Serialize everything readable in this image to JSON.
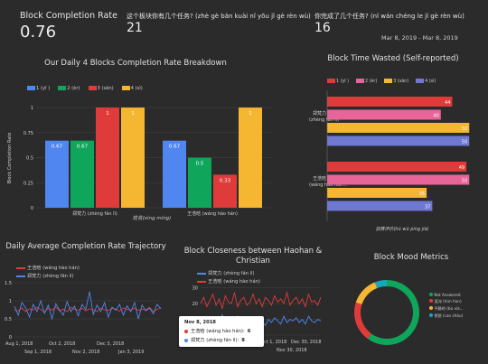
{
  "colors": {
    "blue": "#4f86ef",
    "green": "#0fa55b",
    "red": "#df3b3b",
    "yellow": "#f5b731",
    "pink": "#e8659a",
    "slate": "#6f79d2",
    "teal": "#17a7b9",
    "bg": "#2b2b2b"
  },
  "kpis": [
    {
      "label": "Block Completion Rate",
      "value": "0.76"
    },
    {
      "label": "这个板块你有几个任务? (zhè gè băn kuài nĭ yŏu jĭ gè rèn wù)",
      "value": "21"
    },
    {
      "label": "你完成了几个任务? (nĭ wán chéng le jĭ gè rèn wù)",
      "value": "16"
    }
  ],
  "date_range": "Mar 8, 2019 - Mar 8, 2019",
  "panel1": {
    "title": "Our Daily 4 Blocks Completion Rate Breakdown",
    "legend": [
      "1 (yī )",
      "2 (èr)",
      "3 (sān)",
      "4 (sì)"
    ],
    "ylabel": "Block Completion Rate",
    "xlabel": "姓名(xìng míng)",
    "yticks": [
      "1",
      "0.75",
      "0.5",
      "0.25",
      "0"
    ]
  },
  "panel2": {
    "title": "Block Time Wasted (Self-reported)",
    "legend": [
      "1 (yī )",
      "2 (èr)",
      "3 (sān)",
      "4 (sì)"
    ],
    "xlabel": "获赛评价(hù wù pìng jià)",
    "person1": [
      "郑梵力",
      "(zhèng fán lì)"
    ],
    "person2": [
      "王浩晗",
      "(wáng hào hán..."
    ]
  },
  "panel3": {
    "title": "Daily Average Completion Rate Trajectory",
    "legend": [
      "王浩晗 (wáng hào hán)",
      "郑梵力 (zhèng fán lì)"
    ],
    "yticks": [
      "1.5",
      "1",
      "0.5",
      "0"
    ],
    "xticks_top": [
      "Aug 1, 2018",
      "Oct 2, 2018",
      "Dec 3, 2018"
    ],
    "xticks_bot": [
      "Sep 1, 2018",
      "Nov 2, 2018",
      "Jan 3, 2019"
    ]
  },
  "panel4": {
    "title": "Block Closeness between Haohan & Christian",
    "legend": [
      "郑梵力 (zhèng fán lì)",
      "王浩晗 (wáng hào hán)"
    ],
    "yticks": [
      "30",
      "20",
      "10",
      "0"
    ],
    "xticks": [
      "Oct 1, 2018",
      "Dec 30, 2018"
    ],
    "xticks_bot": [
      "Nov 30, 2018"
    ],
    "tooltip": {
      "date": "Nov 8, 2018",
      "rows": [
        {
          "label": "王浩晗 (wáng hào hán):",
          "value": "6"
        },
        {
          "label": "郑梵力 (zhèng fán lì):",
          "value": "8"
        }
      ]
    }
  },
  "panel5": {
    "title": "Block Mood Metrics",
    "legend": [
      "Not Answered",
      "混沌 (hún hùn)",
      "平静的 (bù xià...",
      "愤怒 (can zhòu)"
    ]
  },
  "chart_data": [
    {
      "type": "bar",
      "title": "Our Daily 4 Blocks Completion Rate Breakdown",
      "xlabel": "姓名(xìng míng)",
      "ylabel": "Block Completion Rate",
      "categories": [
        "郑梵力 (zhèng fán lì)",
        "王浩晗 (wáng hào hán)"
      ],
      "ylim": [
        0,
        1.1
      ],
      "series": [
        {
          "name": "1 (yī )",
          "values": [
            0.67,
            0.67
          ],
          "labels": [
            "0.67",
            "0.67"
          ]
        },
        {
          "name": "2 (èr)",
          "values": [
            0.67,
            0.5
          ],
          "labels": [
            "0.67",
            "0.5"
          ]
        },
        {
          "name": "3 (sān)",
          "values": [
            1,
            0.33
          ],
          "labels": [
            "1",
            "0.33"
          ]
        },
        {
          "name": "4 (sì)",
          "values": [
            1,
            1
          ],
          "labels": [
            "1",
            "1"
          ]
        }
      ]
    },
    {
      "type": "bar",
      "orientation": "horizontal",
      "title": "Block Time Wasted (Self-reported)",
      "xlabel": "获赛评价(hù wù pìng jià)",
      "categories": [
        "郑梵力 (zhèng fán lì)",
        "王浩晗 (wáng hào hán)"
      ],
      "xlim": [
        0,
        55
      ],
      "series": [
        {
          "name": "1 (yī )",
          "values": [
            44,
            49
          ]
        },
        {
          "name": "2 (èr)",
          "values": [
            40,
            50
          ]
        },
        {
          "name": "3 (sān)",
          "values": [
            50,
            35
          ]
        },
        {
          "name": "4 (sì)",
          "values": [
            50,
            37
          ]
        }
      ]
    },
    {
      "type": "line",
      "title": "Daily Average Completion Rate Trajectory",
      "x_range": [
        "Aug 1, 2018",
        "Mar 8, 2019"
      ],
      "ylim": [
        0,
        1.5
      ],
      "series": [
        {
          "name": "王浩晗 (wáng hào hán)",
          "values": [
            0.75,
            0.72,
            0.8,
            0.7,
            0.78,
            0.74,
            0.82,
            0.76,
            0.68,
            0.8,
            0.74,
            0.83,
            0.72,
            0.77,
            0.7,
            0.82,
            0.76,
            0.74,
            0.8,
            0.72,
            0.78,
            0.75,
            0.7,
            0.8,
            0.75,
            0.73,
            0.79,
            0.77,
            0.71,
            0.8,
            0.76,
            0.74,
            0.8,
            0.73,
            0.77,
            0.75,
            0.82,
            0.7,
            0.76,
            0.8
          ]
        },
        {
          "name": "郑梵力 (zhèng fán lì)",
          "values": [
            0.85,
            0.6,
            0.95,
            0.8,
            0.55,
            0.9,
            0.7,
            1.0,
            0.65,
            0.88,
            0.5,
            0.92,
            0.75,
            0.6,
            0.98,
            0.7,
            0.85,
            0.58,
            0.9,
            0.76,
            1.25,
            0.62,
            0.88,
            0.7,
            0.95,
            0.55,
            0.82,
            0.74,
            0.9,
            0.6,
            0.86,
            0.7,
            0.95,
            0.5,
            0.88,
            0.72,
            0.8,
            0.64,
            0.9,
            0.78
          ]
        }
      ]
    },
    {
      "type": "line",
      "title": "Block Closeness between Haohan & Christian",
      "x_range": [
        "Oct 1, 2018",
        "Jan 1, 2019"
      ],
      "ylim": [
        0,
        35
      ],
      "series": [
        {
          "name": "郑梵力 (zhèng fán lì)",
          "values": [
            10,
            8,
            12,
            9,
            6,
            11,
            8,
            13,
            7,
            9,
            10,
            6,
            12,
            8,
            9,
            11,
            7,
            10,
            8,
            12,
            9,
            6,
            10,
            8,
            11,
            9,
            7,
            12,
            8,
            10,
            9,
            11,
            8,
            10,
            7,
            12,
            9,
            8,
            10,
            9
          ]
        },
        {
          "name": "王浩晗 (wáng hào hán)",
          "values": [
            20,
            24,
            18,
            22,
            26,
            19,
            23,
            17,
            25,
            21,
            20,
            27,
            18,
            22,
            24,
            19,
            21,
            26,
            20,
            23,
            18,
            24,
            22,
            19,
            25,
            21,
            23,
            20,
            27,
            19,
            22,
            24,
            20,
            23,
            18,
            26,
            21,
            22,
            19,
            24
          ]
        }
      ]
    },
    {
      "type": "pie",
      "title": "Block Mood Metrics",
      "donut": true,
      "labels": [
        "Not Answered",
        "混沌 (hún hùn)",
        "平静的 (bù xià...",
        "愤怒 (can zhòu)"
      ],
      "values": [
        60,
        20,
        14,
        6
      ]
    }
  ]
}
